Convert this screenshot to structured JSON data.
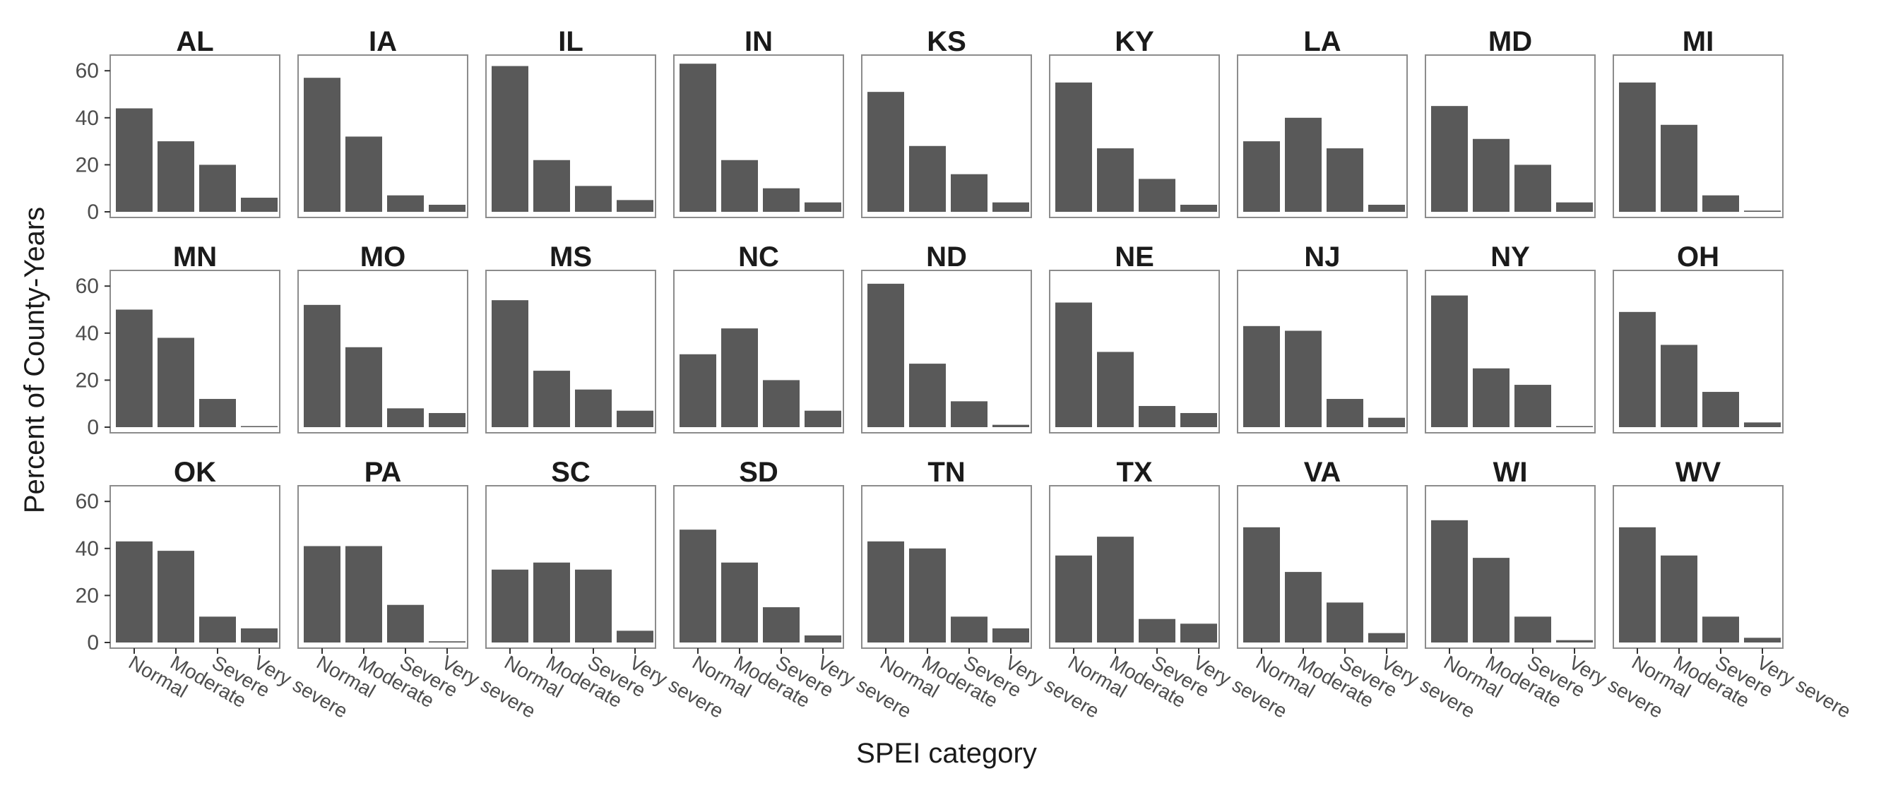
{
  "chart_data": {
    "type": "bar",
    "facet_layout": "3 rows x 9 columns",
    "xlabel": "SPEI category",
    "ylabel": "Percent of County-Years",
    "categories": [
      "Normal",
      "Moderate",
      "Severe",
      "Very severe"
    ],
    "yticks": [
      0,
      20,
      40,
      60
    ],
    "ylim": [
      0,
      66
    ],
    "grid": false,
    "panels": [
      {
        "state": "AL",
        "values": [
          44,
          30,
          20,
          6
        ]
      },
      {
        "state": "IA",
        "values": [
          57,
          32,
          7,
          3
        ]
      },
      {
        "state": "IL",
        "values": [
          62,
          22,
          11,
          5
        ]
      },
      {
        "state": "IN",
        "values": [
          63,
          22,
          10,
          4
        ]
      },
      {
        "state": "KS",
        "values": [
          51,
          28,
          16,
          4
        ]
      },
      {
        "state": "KY",
        "values": [
          55,
          27,
          14,
          3
        ]
      },
      {
        "state": "LA",
        "values": [
          30,
          40,
          27,
          3
        ]
      },
      {
        "state": "MD",
        "values": [
          45,
          31,
          20,
          4
        ]
      },
      {
        "state": "MI",
        "values": [
          55,
          37,
          7,
          0.5
        ]
      },
      {
        "state": "MN",
        "values": [
          50,
          38,
          12,
          0.3
        ]
      },
      {
        "state": "MO",
        "values": [
          52,
          34,
          8,
          6
        ]
      },
      {
        "state": "MS",
        "values": [
          54,
          24,
          16,
          7
        ]
      },
      {
        "state": "NC",
        "values": [
          31,
          42,
          20,
          7
        ]
      },
      {
        "state": "ND",
        "values": [
          61,
          27,
          11,
          1
        ]
      },
      {
        "state": "NE",
        "values": [
          53,
          32,
          9,
          6
        ]
      },
      {
        "state": "NJ",
        "values": [
          43,
          41,
          12,
          4
        ]
      },
      {
        "state": "NY",
        "values": [
          56,
          25,
          18,
          0.3
        ]
      },
      {
        "state": "OH",
        "values": [
          49,
          35,
          15,
          2
        ]
      },
      {
        "state": "OK",
        "values": [
          43,
          39,
          11,
          6
        ]
      },
      {
        "state": "PA",
        "values": [
          41,
          41,
          16,
          0.5
        ]
      },
      {
        "state": "SC",
        "values": [
          31,
          34,
          31,
          5
        ]
      },
      {
        "state": "SD",
        "values": [
          48,
          34,
          15,
          3
        ]
      },
      {
        "state": "TN",
        "values": [
          43,
          40,
          11,
          6
        ]
      },
      {
        "state": "TX",
        "values": [
          37,
          45,
          10,
          8
        ]
      },
      {
        "state": "VA",
        "values": [
          49,
          30,
          17,
          4
        ]
      },
      {
        "state": "WI",
        "values": [
          52,
          36,
          11,
          1
        ]
      },
      {
        "state": "WV",
        "values": [
          49,
          37,
          11,
          2
        ]
      }
    ]
  }
}
